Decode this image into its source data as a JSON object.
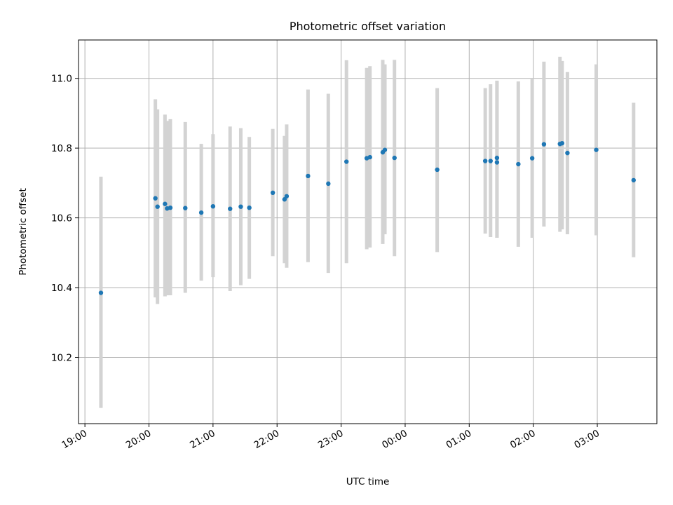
{
  "chart_data": {
    "type": "scatter",
    "title": "Photometric offset variation",
    "xlabel": "UTC time",
    "ylabel": "Photometric offset",
    "x_axis_type": "time",
    "x_start": "18:55",
    "x_end": "3:55 (+1 day)",
    "xlim_hours": [
      18.9,
      27.93
    ],
    "ylim": [
      10.01,
      11.11
    ],
    "x_ticks": [
      {
        "label": "19:00",
        "hour": 19
      },
      {
        "label": "20:00",
        "hour": 20
      },
      {
        "label": "21:00",
        "hour": 21
      },
      {
        "label": "22:00",
        "hour": 22
      },
      {
        "label": "23:00",
        "hour": 23
      },
      {
        "label": "00:00",
        "hour": 24
      },
      {
        "label": "01:00",
        "hour": 25
      },
      {
        "label": "02:00",
        "hour": 26
      },
      {
        "label": "03:00",
        "hour": 27
      }
    ],
    "y_ticks": [
      {
        "label": "10.2",
        "value": 10.2
      },
      {
        "label": "10.4",
        "value": 10.4
      },
      {
        "label": "10.6",
        "value": 10.6
      },
      {
        "label": "10.8",
        "value": 10.8
      },
      {
        "label": "11.0",
        "value": 11.0
      }
    ],
    "grid": true,
    "colors": {
      "points": "#1f77b4",
      "error_bars": "#d3d3d3",
      "grid": "#b0b0b0"
    },
    "points": [
      {
        "time": "19:15",
        "y": 10.385,
        "lo": 10.055,
        "hi": 10.718
      },
      {
        "time": "20:06",
        "y": 10.656,
        "lo": 10.372,
        "hi": 10.94
      },
      {
        "time": "20:08",
        "y": 10.632,
        "lo": 10.353,
        "hi": 10.911
      },
      {
        "time": "20:15",
        "y": 10.64,
        "lo": 10.375,
        "hi": 10.896
      },
      {
        "time": "20:17",
        "y": 10.627,
        "lo": 10.378,
        "hi": 10.878
      },
      {
        "time": "20:20",
        "y": 10.629,
        "lo": 10.378,
        "hi": 10.883
      },
      {
        "time": "20:34",
        "y": 10.628,
        "lo": 10.385,
        "hi": 10.875
      },
      {
        "time": "20:49",
        "y": 10.615,
        "lo": 10.42,
        "hi": 10.812
      },
      {
        "time": "21:00",
        "y": 10.633,
        "lo": 10.43,
        "hi": 10.84
      },
      {
        "time": "21:16",
        "y": 10.626,
        "lo": 10.39,
        "hi": 10.862
      },
      {
        "time": "21:26",
        "y": 10.632,
        "lo": 10.407,
        "hi": 10.857
      },
      {
        "time": "21:34",
        "y": 10.629,
        "lo": 10.425,
        "hi": 10.832
      },
      {
        "time": "21:56",
        "y": 10.672,
        "lo": 10.49,
        "hi": 10.855
      },
      {
        "time": "22:07",
        "y": 10.653,
        "lo": 10.47,
        "hi": 10.835
      },
      {
        "time": "22:09",
        "y": 10.662,
        "lo": 10.457,
        "hi": 10.868
      },
      {
        "time": "22:29",
        "y": 10.72,
        "lo": 10.473,
        "hi": 10.968
      },
      {
        "time": "22:48",
        "y": 10.698,
        "lo": 10.442,
        "hi": 10.956
      },
      {
        "time": "23:05",
        "y": 10.761,
        "lo": 10.47,
        "hi": 11.052
      },
      {
        "time": "23:24",
        "y": 10.771,
        "lo": 10.51,
        "hi": 11.03
      },
      {
        "time": "23:27",
        "y": 10.774,
        "lo": 10.515,
        "hi": 11.035
      },
      {
        "time": "23:39",
        "y": 10.788,
        "lo": 10.525,
        "hi": 11.053
      },
      {
        "time": "23:41",
        "y": 10.795,
        "lo": 10.553,
        "hi": 11.04
      },
      {
        "time": "23:50",
        "y": 10.772,
        "lo": 10.49,
        "hi": 11.053
      },
      {
        "time": "00:30",
        "y": 10.738,
        "lo": 10.502,
        "hi": 10.972
      },
      {
        "time": "01:15",
        "y": 10.763,
        "lo": 10.555,
        "hi": 10.972
      },
      {
        "time": "01:20",
        "y": 10.763,
        "lo": 10.545,
        "hi": 10.983
      },
      {
        "time": "01:26",
        "y": 10.772,
        "lo": 10.543,
        "hi": 10.993
      },
      {
        "time": "01:26",
        "y": 10.759,
        "lo": 10.543,
        "hi": 10.993
      },
      {
        "time": "01:46",
        "y": 10.754,
        "lo": 10.517,
        "hi": 10.991
      },
      {
        "time": "01:59",
        "y": 10.771,
        "lo": 10.543,
        "hi": 11.0
      },
      {
        "time": "02:10",
        "y": 10.811,
        "lo": 10.575,
        "hi": 11.048
      },
      {
        "time": "02:25",
        "y": 10.812,
        "lo": 10.56,
        "hi": 11.062
      },
      {
        "time": "02:27",
        "y": 10.814,
        "lo": 10.567,
        "hi": 11.05
      },
      {
        "time": "02:32",
        "y": 10.786,
        "lo": 10.553,
        "hi": 11.018
      },
      {
        "time": "02:59",
        "y": 10.795,
        "lo": 10.55,
        "hi": 11.04
      },
      {
        "time": "03:34",
        "y": 10.708,
        "lo": 10.487,
        "hi": 10.93
      }
    ]
  }
}
